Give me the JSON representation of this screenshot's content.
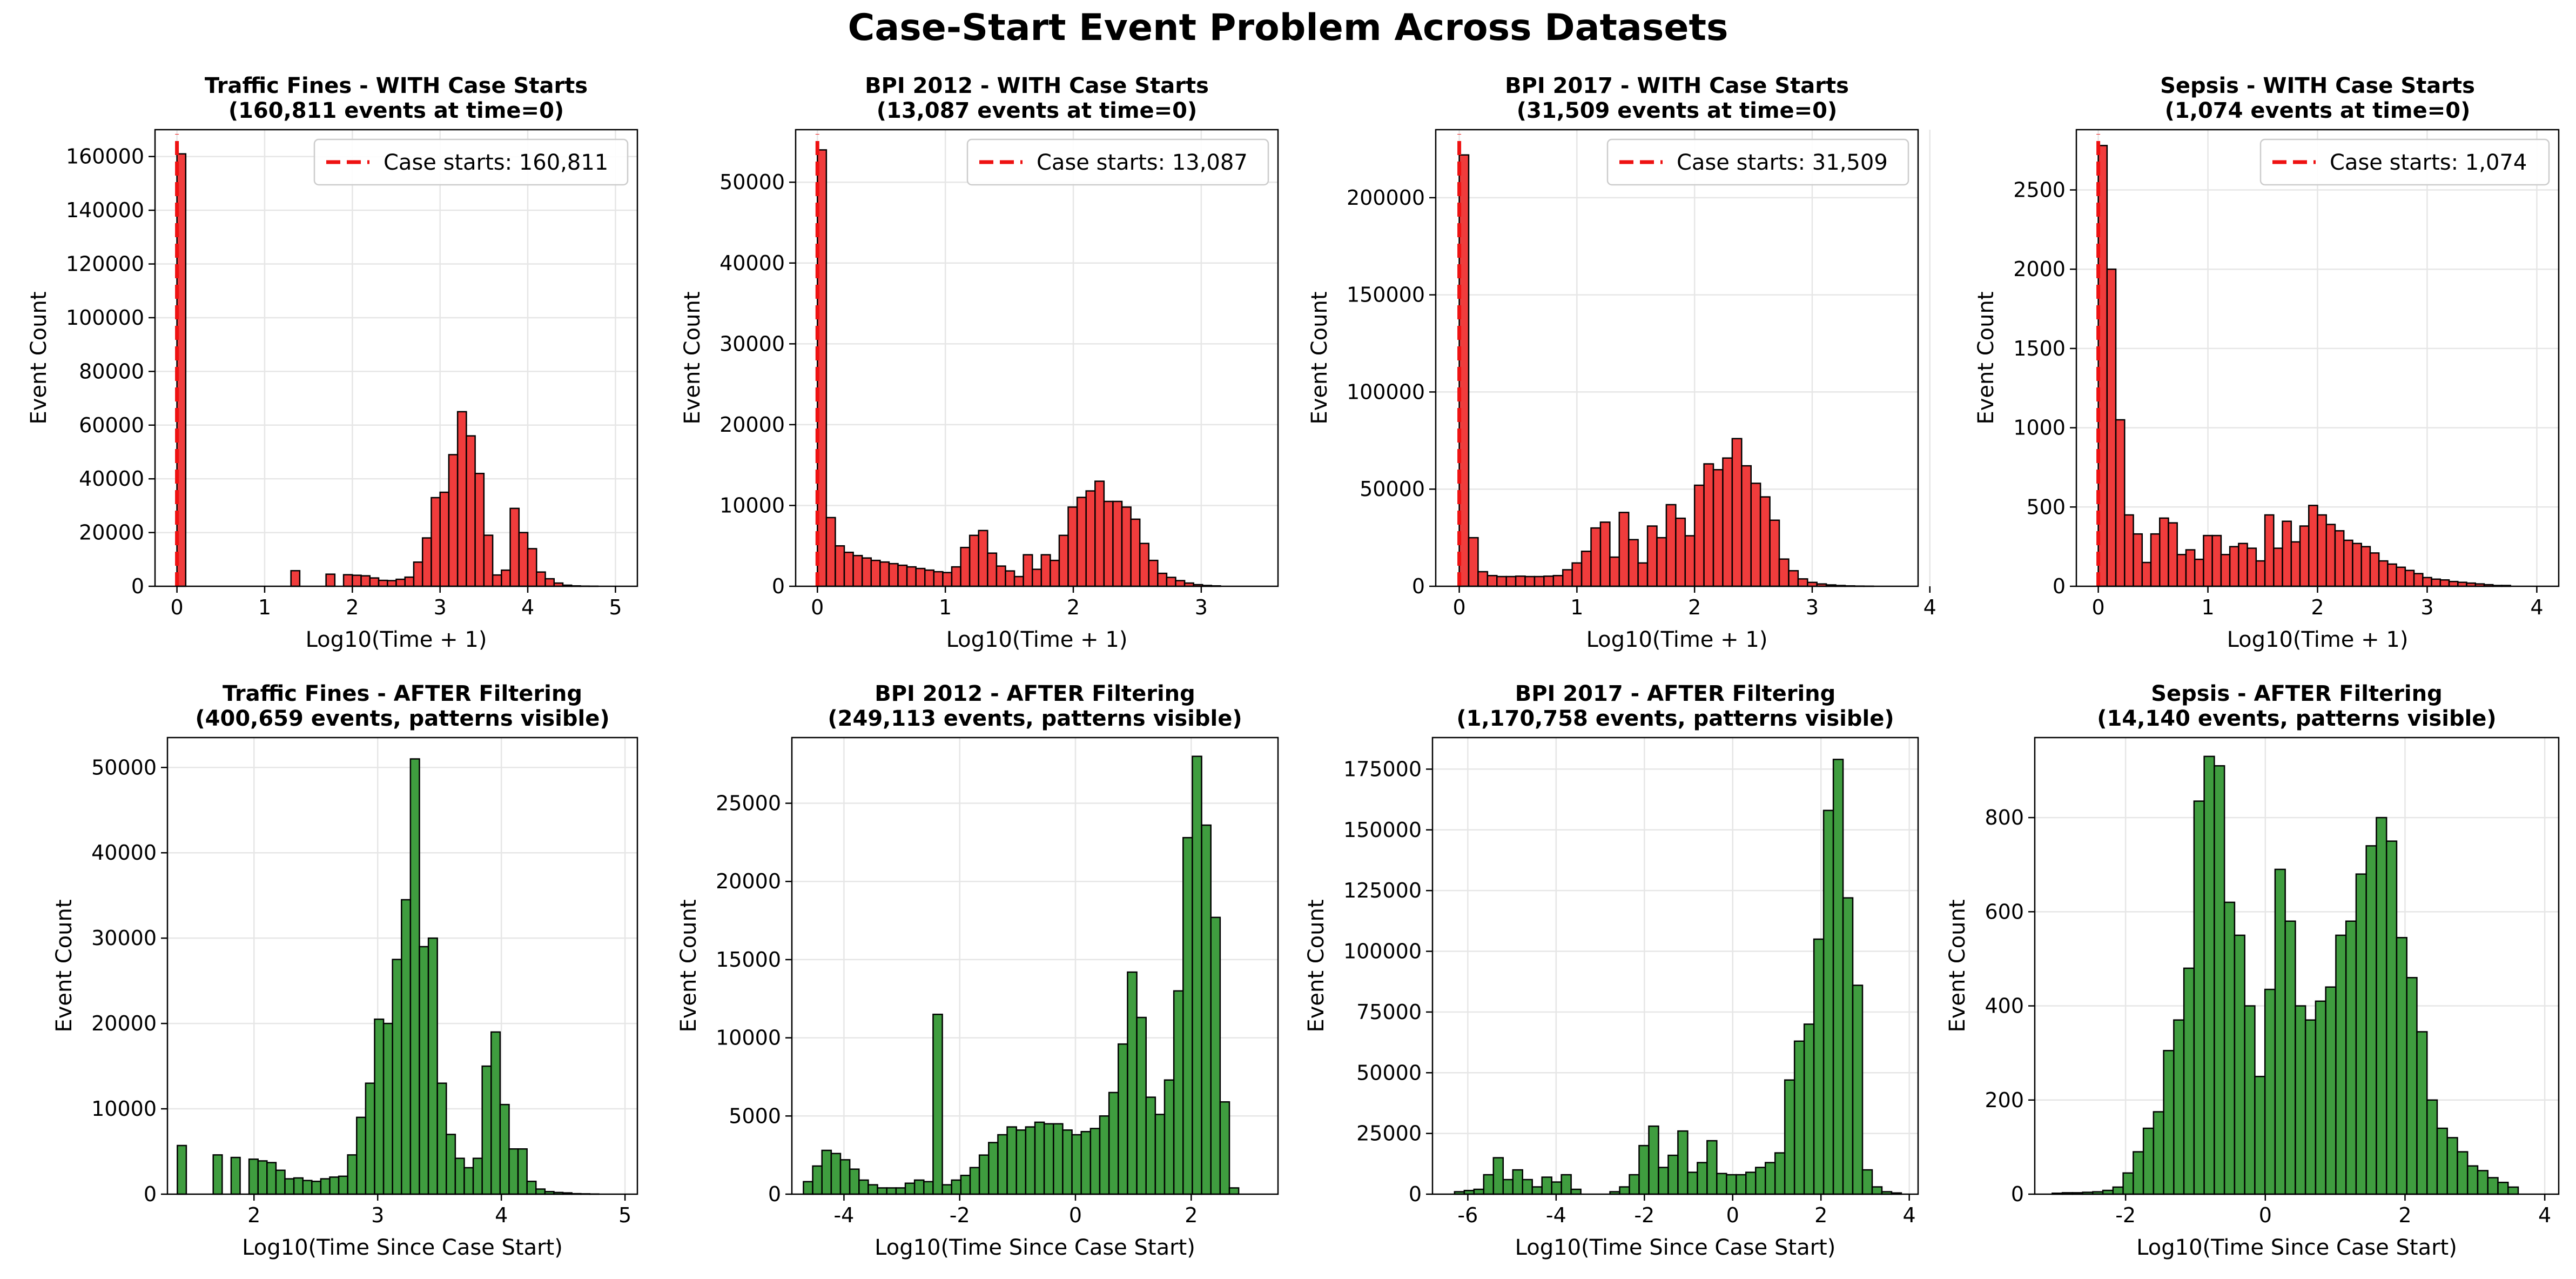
{
  "figure": {
    "suptitle": "Case-Start Event Problem Across Datasets"
  },
  "colors": {
    "top_bars": "#f03c3c",
    "bottom_bars": "#3f9d3f",
    "bar_edge": "#000000",
    "case_start_line": "#ee1111",
    "grid": "#e6e6e6"
  },
  "chart_data": [
    {
      "type": "bar",
      "panel": "top",
      "title": "Traffic Fines - WITH Case Starts",
      "subtitle": "(160,811 events at time=0)",
      "xlabel": "Log10(Time + 1)",
      "ylabel": "Event Count",
      "xlim": [
        -0.25,
        5.25
      ],
      "ylim": [
        0,
        170000
      ],
      "xticks": [
        0,
        1,
        2,
        3,
        4,
        5
      ],
      "yticks": [
        0,
        20000,
        40000,
        60000,
        80000,
        100000,
        120000,
        140000,
        160000
      ],
      "grid": true,
      "legend_position": "top-right",
      "legend_label": "Case starts: 160,811",
      "case_start_count": 160811,
      "case_start_x": 0,
      "bin_start": 0,
      "bin_width": 0.1,
      "values": [
        161000,
        0,
        0,
        0,
        0,
        0,
        0,
        0,
        0,
        0,
        0,
        0,
        0,
        5800,
        0,
        0,
        0,
        4500,
        0,
        4300,
        4100,
        3900,
        3100,
        2200,
        2100,
        2600,
        3400,
        9000,
        18000,
        33000,
        35000,
        49000,
        65000,
        56000,
        42000,
        19000,
        4200,
        6000,
        29000,
        20000,
        14000,
        5300,
        2800,
        1200,
        400,
        150,
        60,
        30,
        0,
        0
      ]
    },
    {
      "type": "bar",
      "panel": "top",
      "title": "BPI 2012 - WITH Case Starts",
      "subtitle": "(13,087 events at time=0)",
      "xlabel": "Log10(Time + 1)",
      "ylabel": "Event Count",
      "xlim": [
        -0.17,
        3.6
      ],
      "ylim": [
        0,
        56500
      ],
      "xticks": [
        0,
        1,
        2,
        3
      ],
      "yticks": [
        0,
        10000,
        20000,
        30000,
        40000,
        50000
      ],
      "grid": true,
      "legend_position": "top-right",
      "legend_label": "Case starts: 13,087",
      "case_start_count": 13087,
      "case_start_x": 0,
      "bin_start": 0,
      "bin_width": 0.07,
      "values": [
        54000,
        8500,
        5000,
        4200,
        3800,
        3500,
        3200,
        3000,
        2800,
        2600,
        2400,
        2200,
        2000,
        1800,
        1700,
        2400,
        4800,
        6300,
        6900,
        4100,
        2500,
        1900,
        1200,
        3900,
        2100,
        3900,
        3200,
        6300,
        9800,
        11000,
        11800,
        13000,
        10500,
        10500,
        9800,
        8300,
        5300,
        3200,
        1600,
        1100,
        700,
        400,
        200,
        100,
        50,
        0,
        0,
        0,
        0,
        0,
        0
      ]
    },
    {
      "type": "bar",
      "panel": "top",
      "title": "BPI 2017 - WITH Case Starts",
      "subtitle": "(31,509 events at time=0)",
      "xlabel": "Log10(Time + 1)",
      "ylabel": "Event Count",
      "xlim": [
        -0.2,
        3.9
      ],
      "ylim": [
        0,
        235000
      ],
      "xticks": [
        0,
        1,
        2,
        3,
        4
      ],
      "yticks": [
        0,
        50000,
        100000,
        150000,
        200000
      ],
      "grid": true,
      "legend_position": "top-right",
      "legend_label": "Case starts: 31,509",
      "case_start_count": 31509,
      "case_start_x": 0,
      "bin_start": 0,
      "bin_width": 0.08,
      "values": [
        222000,
        25000,
        7500,
        5500,
        5000,
        5000,
        5200,
        5000,
        5000,
        5200,
        5500,
        8500,
        12000,
        18000,
        30000,
        33000,
        15000,
        38000,
        24000,
        12000,
        31000,
        25000,
        42000,
        35000,
        26000,
        52000,
        63000,
        60000,
        66000,
        76000,
        62000,
        53000,
        46000,
        34000,
        14000,
        8000,
        3800,
        2000,
        1200,
        700,
        400,
        200,
        100,
        50,
        0,
        0,
        0,
        0,
        0,
        0
      ]
    },
    {
      "type": "bar",
      "panel": "top",
      "title": "Sepsis - WITH Case Starts",
      "subtitle": "(1,074 events at time=0)",
      "xlabel": "Log10(Time + 1)",
      "ylabel": "Event Count",
      "xlim": [
        -0.2,
        4.2
      ],
      "ylim": [
        0,
        2880
      ],
      "xticks": [
        0,
        1,
        2,
        3,
        4
      ],
      "yticks": [
        0,
        500,
        1000,
        1500,
        2000,
        2500
      ],
      "grid": true,
      "legend_position": "top-right",
      "legend_label": "Case starts: 1,074",
      "case_start_count": 1074,
      "case_start_x": 0,
      "bin_start": 0,
      "bin_width": 0.08,
      "values": [
        2780,
        2000,
        1050,
        450,
        330,
        150,
        330,
        430,
        400,
        200,
        230,
        170,
        320,
        320,
        200,
        250,
        270,
        240,
        160,
        450,
        240,
        410,
        280,
        380,
        510,
        450,
        390,
        350,
        290,
        270,
        250,
        210,
        160,
        140,
        120,
        100,
        80,
        55,
        45,
        40,
        30,
        25,
        20,
        15,
        10,
        5,
        5,
        0,
        0,
        0
      ]
    },
    {
      "type": "bar",
      "panel": "bottom",
      "title": "Traffic Fines - AFTER Filtering",
      "subtitle": "(400,659 events, patterns visible)",
      "xlabel": "Log10(Time Since Case Start)",
      "ylabel": "Event Count",
      "xlim": [
        1.3,
        5.1
      ],
      "ylim": [
        0,
        53500
      ],
      "xticks": [
        2,
        3,
        4,
        5
      ],
      "yticks": [
        0,
        10000,
        20000,
        30000,
        40000,
        50000
      ],
      "grid": true,
      "bin_start": 1.38,
      "bin_width": 0.0725,
      "values": [
        5700,
        0,
        0,
        0,
        4600,
        0,
        4300,
        0,
        4100,
        3900,
        3700,
        2800,
        1800,
        1900,
        1600,
        1500,
        1800,
        2000,
        2100,
        4600,
        9000,
        13000,
        20500,
        20000,
        27500,
        34500,
        51000,
        29000,
        30000,
        13000,
        7000,
        4200,
        3100,
        4200,
        15000,
        19000,
        10500,
        5300,
        5300,
        1500,
        600,
        300,
        200,
        150,
        60,
        40,
        20,
        0,
        0,
        0,
        0,
        0
      ]
    },
    {
      "type": "bar",
      "panel": "bottom",
      "title": "BPI 2012 - AFTER Filtering",
      "subtitle": "(249,113 events, patterns visible)",
      "xlabel": "Log10(Time Since Case Start)",
      "ylabel": "Event Count",
      "xlim": [
        -4.9,
        3.5
      ],
      "ylim": [
        0,
        29200
      ],
      "xticks": [
        -4,
        -2,
        0,
        2
      ],
      "yticks": [
        0,
        5000,
        10000,
        15000,
        20000,
        25000
      ],
      "grid": true,
      "bin_start": -4.7,
      "bin_width": 0.16,
      "values": [
        800,
        1800,
        2800,
        2600,
        2200,
        1600,
        900,
        600,
        400,
        400,
        400,
        700,
        900,
        800,
        11500,
        600,
        900,
        1200,
        1700,
        2500,
        3300,
        3800,
        4300,
        4100,
        4300,
        4600,
        4500,
        4500,
        4100,
        3800,
        4000,
        4200,
        5000,
        6500,
        9600,
        14200,
        11300,
        6200,
        5100,
        7300,
        13000,
        22800,
        28000,
        23600,
        17700,
        5900,
        400,
        0,
        0,
        0,
        0,
        0
      ]
    },
    {
      "type": "bar",
      "panel": "bottom",
      "title": "BPI 2017 - AFTER Filtering",
      "subtitle": "(1,170,758 events, patterns visible)",
      "xlabel": "Log10(Time Since Case Start)",
      "ylabel": "Event Count",
      "xlim": [
        -6.8,
        4.2
      ],
      "ylim": [
        0,
        188000
      ],
      "xticks": [
        -6,
        -4,
        -2,
        0,
        2,
        4
      ],
      "yticks": [
        0,
        25000,
        50000,
        75000,
        100000,
        125000,
        150000,
        175000
      ],
      "grid": true,
      "bin_start": -6.3,
      "bin_width": 0.22,
      "values": [
        1000,
        1500,
        2000,
        8000,
        15000,
        6000,
        10000,
        6000,
        3000,
        7000,
        5000,
        8000,
        2000,
        0,
        0,
        0,
        1000,
        3000,
        8000,
        20000,
        28000,
        11000,
        16000,
        26000,
        9000,
        13000,
        22000,
        8500,
        8000,
        8000,
        9000,
        11000,
        13000,
        17000,
        47000,
        63000,
        70000,
        105000,
        158000,
        179000,
        122000,
        86000,
        10000,
        3000,
        1000,
        500,
        0,
        0,
        0,
        0
      ]
    },
    {
      "type": "bar",
      "panel": "bottom",
      "title": "Sepsis - AFTER Filtering",
      "subtitle": "(14,140 events, patterns visible)",
      "xlabel": "Log10(Time Since Case Start)",
      "ylabel": "Event Count",
      "xlim": [
        -3.3,
        4.2
      ],
      "ylim": [
        0,
        970
      ],
      "xticks": [
        -2,
        0,
        2,
        4
      ],
      "yticks": [
        0,
        200,
        400,
        600,
        800
      ],
      "grid": true,
      "bin_start": -3.05,
      "bin_width": 0.145,
      "values": [
        2,
        3,
        3,
        4,
        5,
        8,
        15,
        45,
        90,
        140,
        175,
        305,
        370,
        480,
        835,
        930,
        910,
        620,
        550,
        400,
        250,
        435,
        690,
        580,
        400,
        370,
        410,
        440,
        550,
        580,
        680,
        740,
        800,
        750,
        545,
        460,
        345,
        200,
        140,
        120,
        90,
        60,
        50,
        35,
        25,
        15,
        0,
        0,
        0,
        0,
        0,
        0
      ]
    }
  ]
}
